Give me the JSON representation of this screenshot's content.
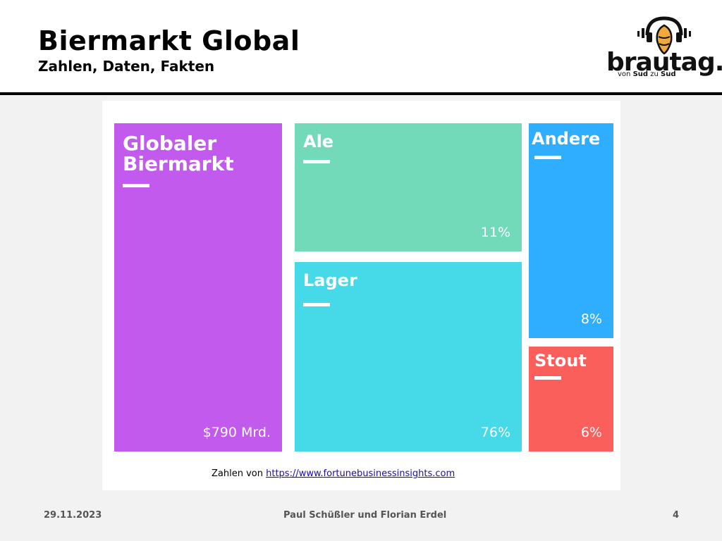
{
  "slide": {
    "title": "Biermarkt Global",
    "subtitle": "Zahlen, Daten, Fakten"
  },
  "logo": {
    "word": "brautag.",
    "tagline_prefix": "von ",
    "tagline_bold1": "Sud",
    "tagline_mid": " zu ",
    "tagline_bold2": "Sud",
    "icon": "hop-headphones-icon"
  },
  "chart_data": {
    "type": "treemap",
    "title": "",
    "total": {
      "label": "Globaler\nBiermarkt",
      "value_text": "$790 Mrd.",
      "value_billions_usd": 790,
      "color": "#c15aed"
    },
    "segments": [
      {
        "name": "Ale",
        "share_percent": 11,
        "value_text": "11%",
        "color": "#72dab8"
      },
      {
        "name": "Lager",
        "share_percent": 76,
        "value_text": "76%",
        "color": "#46d9e7"
      },
      {
        "name": "Andere",
        "share_percent": 8,
        "value_text": "8%",
        "color": "#2fadfe"
      },
      {
        "name": "Stout",
        "share_percent": 6,
        "value_text": "6%",
        "color": "#fb5f5c"
      }
    ]
  },
  "source": {
    "prefix": "Zahlen von ",
    "link_text": "https://www.fortunebusinessinsights.com"
  },
  "footer": {
    "date": "29.11.2023",
    "authors": "Paul Schüßler und Florian Erdel",
    "page": "4"
  }
}
